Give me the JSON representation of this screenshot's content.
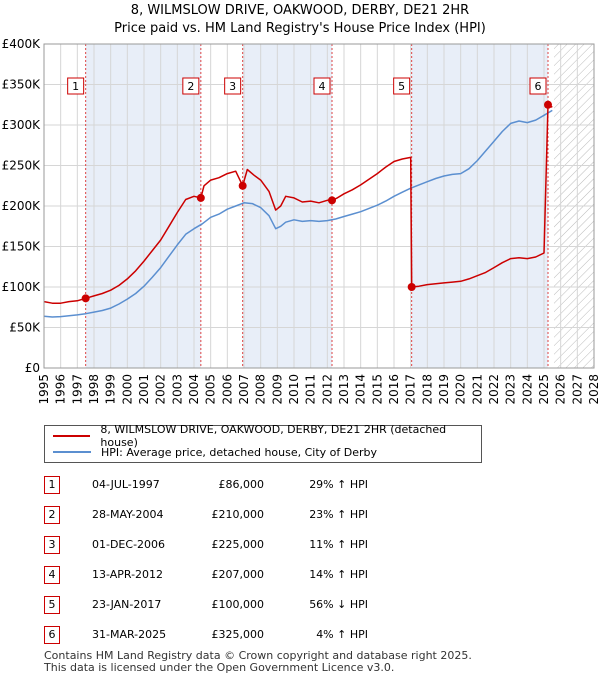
{
  "title_line1": "8, WILMSLOW DRIVE, OAKWOOD, DERBY, DE21 2HR",
  "title_line2": "Price paid vs. HM Land Registry's House Price Index (HPI)",
  "colors": {
    "property": "#cc0000",
    "hpi": "#5b8fd0",
    "band": "#e8eef8",
    "marker": "#cc0000"
  },
  "chart_data": {
    "type": "line",
    "xlim": [
      1995,
      2028
    ],
    "ylim": [
      0,
      400000
    ],
    "y_ticks": [
      0,
      50000,
      100000,
      150000,
      200000,
      250000,
      300000,
      350000,
      400000
    ],
    "y_tick_labels": [
      "£0",
      "£50K",
      "£100K",
      "£150K",
      "£200K",
      "£250K",
      "£300K",
      "£350K",
      "£400K"
    ],
    "x_ticks": [
      1995,
      1996,
      1997,
      1998,
      1999,
      2000,
      2001,
      2002,
      2003,
      2004,
      2005,
      2006,
      2007,
      2008,
      2009,
      2010,
      2011,
      2012,
      2013,
      2014,
      2015,
      2016,
      2017,
      2018,
      2019,
      2020,
      2021,
      2022,
      2023,
      2024,
      2025,
      2026,
      2027,
      2028
    ],
    "x_tick_labels": [
      "1995",
      "1996",
      "1997",
      "1998",
      "1999",
      "2000",
      "2001",
      "2002",
      "2003",
      "2004",
      "2005",
      "2006",
      "2007",
      "2008",
      "2009",
      "2010",
      "2011",
      "2012",
      "2013",
      "2014",
      "2015",
      "2016",
      "2017",
      "2018",
      "2019",
      "2020",
      "2021",
      "2022",
      "2023",
      "2024",
      "2025",
      "2026",
      "2027",
      "2028"
    ],
    "future_from": 2025.6,
    "series": [
      {
        "name": "8, WILMSLOW DRIVE, OAKWOOD, DERBY, DE21 2HR (detached house)",
        "color": "#cc0000",
        "x": [
          1995.0,
          1995.5,
          1996.0,
          1996.5,
          1997.0,
          1997.5,
          1998.0,
          1998.5,
          1999.0,
          1999.5,
          2000.0,
          2000.5,
          2001.0,
          2001.5,
          2002.0,
          2002.5,
          2003.0,
          2003.5,
          2004.0,
          2004.41,
          2004.6,
          2005.0,
          2005.5,
          2006.0,
          2006.5,
          2006.92,
          2007.2,
          2007.6,
          2008.0,
          2008.5,
          2008.9,
          2009.2,
          2009.5,
          2010.0,
          2010.5,
          2011.0,
          2011.5,
          2012.0,
          2012.28,
          2012.6,
          2013.0,
          2013.5,
          2014.0,
          2014.5,
          2015.0,
          2015.5,
          2016.0,
          2016.5,
          2017.0,
          2017.06,
          2017.5,
          2018.0,
          2018.5,
          2019.0,
          2019.5,
          2020.0,
          2020.5,
          2021.0,
          2021.5,
          2022.0,
          2022.5,
          2023.0,
          2023.5,
          2024.0,
          2024.5,
          2025.0,
          2025.24,
          2025.5
        ],
        "values": [
          82000,
          80000,
          80000,
          82000,
          83000,
          86000,
          89000,
          92000,
          96000,
          102000,
          110000,
          120000,
          132000,
          145000,
          158000,
          175000,
          192000,
          208000,
          212000,
          210000,
          225000,
          232000,
          235000,
          240000,
          243000,
          225000,
          245000,
          238000,
          232000,
          218000,
          195000,
          200000,
          212000,
          210000,
          205000,
          206000,
          204000,
          207000,
          207000,
          210000,
          215000,
          220000,
          226000,
          233000,
          240000,
          248000,
          255000,
          258000,
          260000,
          100000,
          101000,
          103000,
          104000,
          105000,
          106000,
          107000,
          110000,
          114000,
          118000,
          124000,
          130000,
          135000,
          136000,
          135000,
          137000,
          142000,
          325000,
          322000
        ]
      },
      {
        "name": "HPI: Average price, detached house, City of Derby",
        "color": "#5b8fd0",
        "x": [
          1995.0,
          1995.5,
          1996.0,
          1996.5,
          1997.0,
          1997.5,
          1998.0,
          1998.5,
          1999.0,
          1999.5,
          2000.0,
          2000.5,
          2001.0,
          2001.5,
          2002.0,
          2002.5,
          2003.0,
          2003.5,
          2004.0,
          2004.5,
          2005.0,
          2005.5,
          2006.0,
          2006.5,
          2007.0,
          2007.5,
          2008.0,
          2008.5,
          2008.9,
          2009.2,
          2009.5,
          2010.0,
          2010.5,
          2011.0,
          2011.5,
          2012.0,
          2012.5,
          2013.0,
          2013.5,
          2014.0,
          2014.5,
          2015.0,
          2015.5,
          2016.0,
          2016.5,
          2017.0,
          2017.5,
          2018.0,
          2018.5,
          2019.0,
          2019.5,
          2020.0,
          2020.5,
          2021.0,
          2021.5,
          2022.0,
          2022.5,
          2023.0,
          2023.5,
          2024.0,
          2024.5,
          2025.0,
          2025.5
        ],
        "values": [
          64000,
          63000,
          63500,
          64500,
          65500,
          67000,
          69000,
          71000,
          74000,
          79000,
          85000,
          92000,
          101000,
          112000,
          124000,
          138000,
          152000,
          165000,
          172000,
          178000,
          186000,
          190000,
          196000,
          200000,
          204000,
          203000,
          198000,
          188000,
          172000,
          175000,
          180000,
          183000,
          181000,
          182000,
          181000,
          182000,
          184000,
          187000,
          190000,
          193000,
          197000,
          201000,
          206000,
          212000,
          217000,
          222000,
          226000,
          230000,
          234000,
          237000,
          239000,
          240000,
          246000,
          256000,
          268000,
          280000,
          292000,
          302000,
          305000,
          303000,
          306000,
          312000,
          318000
        ]
      }
    ],
    "sales": [
      {
        "id": "1",
        "x": 1997.5,
        "value": 86000
      },
      {
        "id": "2",
        "x": 2004.41,
        "value": 210000
      },
      {
        "id": "3",
        "x": 2006.92,
        "value": 225000
      },
      {
        "id": "4",
        "x": 2012.28,
        "value": 207000
      },
      {
        "id": "5",
        "x": 2017.06,
        "value": 100000
      },
      {
        "id": "6",
        "x": 2025.24,
        "value": 325000
      }
    ],
    "bands": [
      [
        1997.5,
        2004.41
      ],
      [
        2006.92,
        2012.28
      ],
      [
        2017.06,
        2025.24
      ]
    ]
  },
  "legend": {
    "property_label": "8, WILMSLOW DRIVE, OAKWOOD, DERBY, DE21 2HR (detached house)",
    "hpi_label": "HPI: Average price, detached house, City of Derby"
  },
  "transactions": [
    {
      "id": "1",
      "date": "04-JUL-1997",
      "price": "£86,000",
      "hpi": "29% ↑ HPI"
    },
    {
      "id": "2",
      "date": "28-MAY-2004",
      "price": "£210,000",
      "hpi": "23% ↑ HPI"
    },
    {
      "id": "3",
      "date": "01-DEC-2006",
      "price": "£225,000",
      "hpi": "11% ↑ HPI"
    },
    {
      "id": "4",
      "date": "13-APR-2012",
      "price": "£207,000",
      "hpi": "14% ↑ HPI"
    },
    {
      "id": "5",
      "date": "23-JAN-2017",
      "price": "£100,000",
      "hpi": "56% ↓ HPI"
    },
    {
      "id": "6",
      "date": "31-MAR-2025",
      "price": "£325,000",
      "hpi": "4% ↑ HPI"
    }
  ],
  "footer_line1": "Contains HM Land Registry data © Crown copyright and database right 2025.",
  "footer_line2": "This data is licensed under the Open Government Licence v3.0."
}
